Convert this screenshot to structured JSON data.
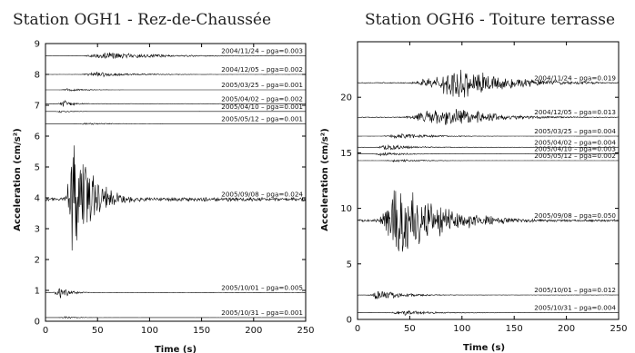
{
  "chart_data": [
    {
      "type": "line",
      "title": "Station OGH1 - Rez-de-Chaussée",
      "xlabel": "Time (s)",
      "ylabel": "Acceleration (cm/s²)",
      "xlim": [
        0,
        250
      ],
      "ylim": [
        0,
        9
      ],
      "xticks": [
        0,
        50,
        100,
        150,
        200,
        250
      ],
      "yticks": [
        0,
        1,
        2,
        3,
        4,
        5,
        6,
        7,
        8,
        9
      ],
      "grid": false,
      "series": [
        {
          "label": "2004/11/24 – pga=0.003",
          "offset": 8.6,
          "pga": 0.003,
          "amp": 0.13,
          "peak_time": 60,
          "rise": 15,
          "decay": 50
        },
        {
          "label": "2004/12/05 – pga=0.002",
          "offset": 8.0,
          "pga": 0.002,
          "amp": 0.1,
          "peak_time": 50,
          "rise": 10,
          "decay": 35
        },
        {
          "label": "2005/03/25 – pga=0.001",
          "offset": 7.5,
          "pga": 0.001,
          "amp": 0.05,
          "peak_time": 22,
          "rise": 5,
          "decay": 18
        },
        {
          "label": "2005/04/02 – pga=0.002",
          "offset": 7.05,
          "pga": 0.002,
          "amp": 0.13,
          "peak_time": 18,
          "rise": 4,
          "decay": 10
        },
        {
          "label": "2005/04/10 – pga=0.001",
          "offset": 6.8,
          "pga": 0.001,
          "amp": 0.05,
          "peak_time": 15,
          "rise": 3,
          "decay": 8
        },
        {
          "label": "2005/05/12 – pga=0.001",
          "offset": 6.4,
          "pga": 0.001,
          "amp": 0.04,
          "peak_time": 40,
          "rise": 8,
          "decay": 25
        },
        {
          "label": "2005/09/08 – pga=0.024",
          "offset": 3.95,
          "pga": 0.024,
          "amp": 2.3,
          "peak_time": 28,
          "rise": 6,
          "decay": 18
        },
        {
          "label": "2005/10/01 – pga=0.005",
          "offset": 0.93,
          "pga": 0.005,
          "amp": 0.22,
          "peak_time": 14,
          "rise": 4,
          "decay": 10
        },
        {
          "label": "2005/10/31 – pga=0.001",
          "offset": 0.12,
          "pga": 0.001,
          "amp": 0.04,
          "peak_time": 20,
          "rise": 5,
          "decay": 14
        }
      ]
    },
    {
      "type": "line",
      "title": "Station OGH6 - Toiture terrasse",
      "xlabel": "Time (s)",
      "ylabel": "Acceleration (cm/s²)",
      "xlim": [
        0,
        250
      ],
      "ylim": [
        0,
        25
      ],
      "xticks": [
        0,
        50,
        100,
        150,
        200,
        250
      ],
      "yticks": [
        0,
        5,
        10,
        15,
        20
      ],
      "grid": false,
      "series": [
        {
          "label": "2004/11/24 – pga=0.019",
          "offset": 21.3,
          "pga": 0.019,
          "amp": 1.6,
          "peak_time": 100,
          "rise": 30,
          "decay": 45
        },
        {
          "label": "2004/12/05 – pga=0.013",
          "offset": 18.2,
          "pga": 0.013,
          "amp": 1.2,
          "peak_time": 85,
          "rise": 25,
          "decay": 40
        },
        {
          "label": "2005/03/25 – pga=0.004",
          "offset": 16.5,
          "pga": 0.004,
          "amp": 0.3,
          "peak_time": 40,
          "rise": 10,
          "decay": 30
        },
        {
          "label": "2005/04/02 – pga=0.004",
          "offset": 15.5,
          "pga": 0.004,
          "amp": 0.3,
          "peak_time": 30,
          "rise": 8,
          "decay": 25
        },
        {
          "label": "2005/04/10 – pga=0.003",
          "offset": 14.9,
          "pga": 0.003,
          "amp": 0.22,
          "peak_time": 25,
          "rise": 6,
          "decay": 20
        },
        {
          "label": "2005/05/12 – pga=0.002",
          "offset": 14.3,
          "pga": 0.002,
          "amp": 0.15,
          "peak_time": 40,
          "rise": 10,
          "decay": 25
        },
        {
          "label": "2005/09/08 – pga=0.050",
          "offset": 8.9,
          "pga": 0.05,
          "amp": 4.0,
          "peak_time": 40,
          "rise": 12,
          "decay": 40
        },
        {
          "label": "2005/10/01 – pga=0.012",
          "offset": 2.2,
          "pga": 0.012,
          "amp": 0.5,
          "peak_time": 20,
          "rise": 6,
          "decay": 25
        },
        {
          "label": "2005/10/31 – pga=0.004",
          "offset": 0.6,
          "pga": 0.004,
          "amp": 0.25,
          "peak_time": 45,
          "rise": 10,
          "decay": 30
        }
      ]
    }
  ]
}
